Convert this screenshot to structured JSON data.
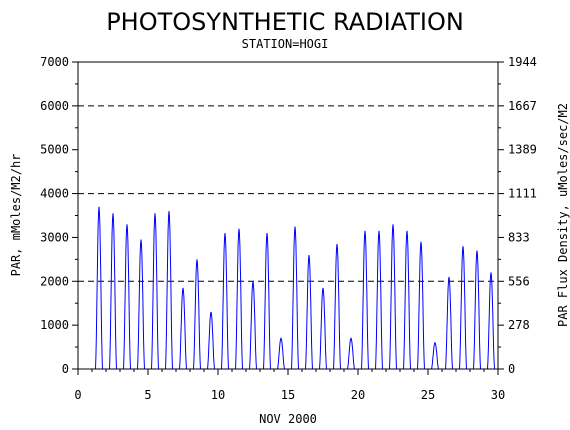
{
  "chart_data": {
    "type": "line",
    "title": "PHOTOSYNTHETIC RADIATION",
    "subtitle": "STATION=HOGI",
    "xlabel": "NOV 2000",
    "ylabel_left": "PAR, mMoles/M2/hr",
    "ylabel_right": "PAR Flux Density, uMoles/sec/M2",
    "xlim": [
      0,
      30
    ],
    "ylim": [
      0,
      7000
    ],
    "x_ticks": [
      "0",
      "5",
      "10",
      "15",
      "20",
      "25",
      "30"
    ],
    "y_ticks_left": [
      "0",
      "1000",
      "2000",
      "3000",
      "4000",
      "5000",
      "6000",
      "7000"
    ],
    "y_ticks_right": [
      "0",
      "278",
      "556",
      "833",
      "1111",
      "1389",
      "1667",
      "1944"
    ],
    "dashed_gridlines_y": [
      2000,
      4000,
      6000
    ],
    "series_color": "#0000ff",
    "daily_peaks": [
      {
        "day": 1,
        "peak": 3700
      },
      {
        "day": 2,
        "peak": 3550
      },
      {
        "day": 3,
        "peak": 3300
      },
      {
        "day": 4,
        "peak": 2950
      },
      {
        "day": 5,
        "peak": 3550
      },
      {
        "day": 6,
        "peak": 3600
      },
      {
        "day": 7,
        "peak": 1850
      },
      {
        "day": 8,
        "peak": 2500
      },
      {
        "day": 9,
        "peak": 1300
      },
      {
        "day": 10,
        "peak": 3100
      },
      {
        "day": 11,
        "peak": 3200
      },
      {
        "day": 12,
        "peak": 2000
      },
      {
        "day": 13,
        "peak": 3100
      },
      {
        "day": 14,
        "peak": 700
      },
      {
        "day": 15,
        "peak": 3250
      },
      {
        "day": 16,
        "peak": 2600
      },
      {
        "day": 17,
        "peak": 1850
      },
      {
        "day": 18,
        "peak": 2850
      },
      {
        "day": 19,
        "peak": 700
      },
      {
        "day": 20,
        "peak": 3150
      },
      {
        "day": 21,
        "peak": 3150
      },
      {
        "day": 22,
        "peak": 3300
      },
      {
        "day": 23,
        "peak": 3150
      },
      {
        "day": 24,
        "peak": 2900
      },
      {
        "day": 25,
        "peak": 600
      },
      {
        "day": 26,
        "peak": 2100
      },
      {
        "day": 27,
        "peak": 2800
      },
      {
        "day": 28,
        "peak": 2700
      },
      {
        "day": 29,
        "peak": 2200
      }
    ]
  }
}
